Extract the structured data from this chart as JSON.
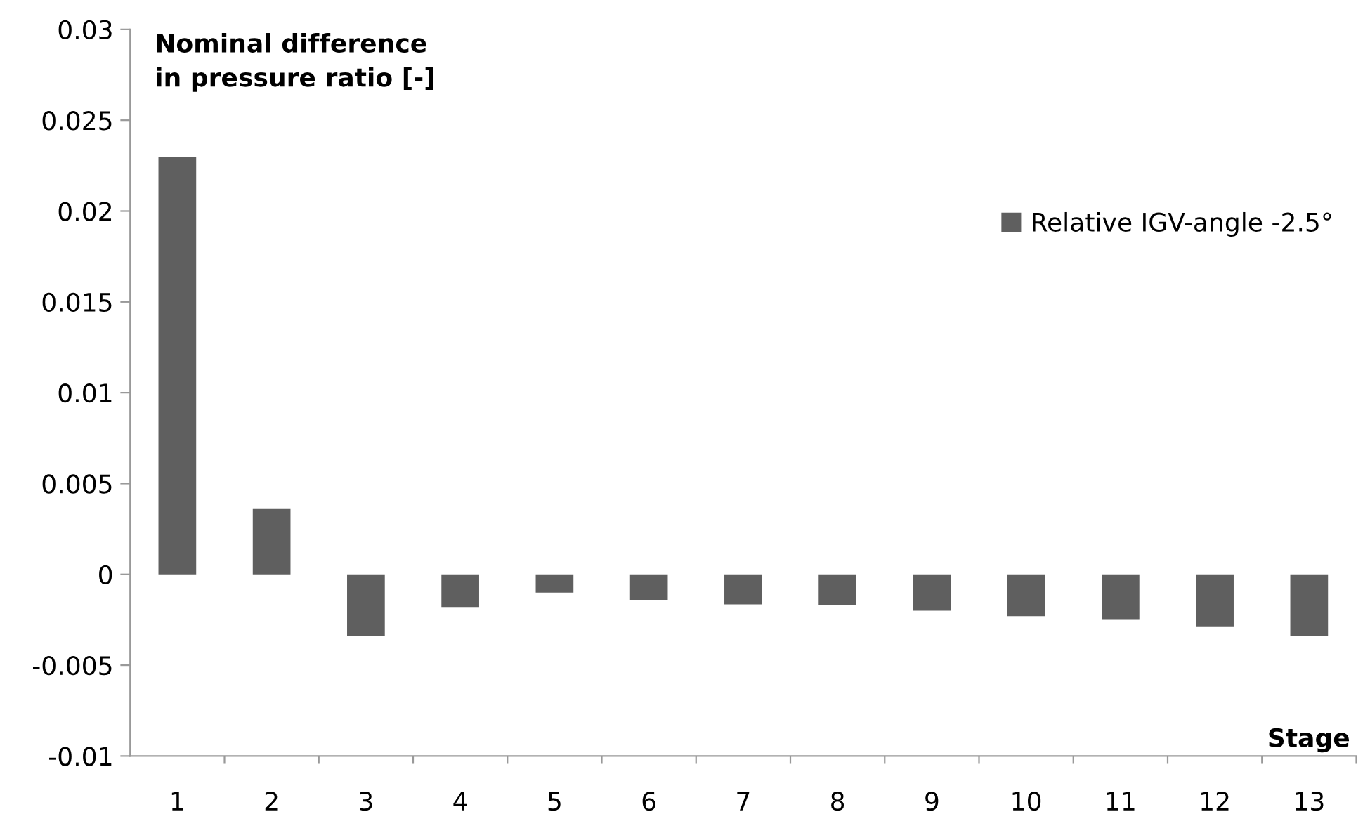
{
  "chart_data": {
    "type": "bar",
    "xlabel": "Stage",
    "ylabel": "Nominal difference\nin pressure ratio [-]",
    "categories": [
      "1",
      "2",
      "3",
      "4",
      "5",
      "6",
      "7",
      "8",
      "9",
      "10",
      "11",
      "12",
      "13"
    ],
    "series": [
      {
        "name": "Relative IGV-angle -2.5°",
        "color": "#5f5f5f",
        "values": [
          0.023,
          0.0036,
          -0.0034,
          -0.0018,
          -0.001,
          -0.0014,
          -0.00165,
          -0.0017,
          -0.002,
          -0.0023,
          -0.0025,
          -0.0029,
          -0.0034
        ]
      }
    ],
    "ylim": [
      -0.01,
      0.03
    ],
    "yticks": [
      -0.01,
      -0.005,
      0,
      0.005,
      0.01,
      0.015,
      0.02,
      0.025,
      0.03
    ],
    "legend": "right"
  }
}
